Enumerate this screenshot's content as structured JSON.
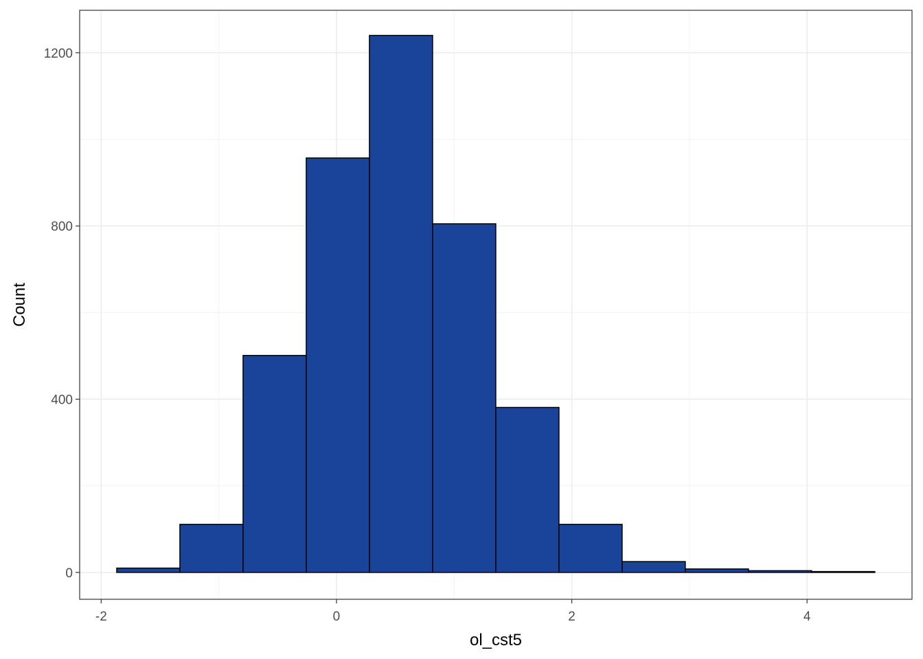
{
  "chart_data": {
    "type": "histogram",
    "x_label": "ol_cst5",
    "y_label": "Count",
    "bins": [
      -1.868,
      -1.331,
      -0.794,
      -0.257,
      0.28,
      0.817,
      1.354,
      1.891,
      2.428,
      2.965,
      3.502,
      4.039,
      4.576
    ],
    "values": [
      10,
      111,
      501,
      957,
      1240,
      805,
      381,
      111,
      25,
      8,
      4,
      2
    ],
    "color": "#1a449a",
    "edge_color": "#000000",
    "xlim": [
      -2.183,
      4.892
    ],
    "xticks": [
      -2,
      0,
      2,
      4
    ],
    "ylim": [
      -62,
      1298
    ],
    "yticks": [
      0,
      400,
      800,
      1200
    ],
    "grid": true
  }
}
